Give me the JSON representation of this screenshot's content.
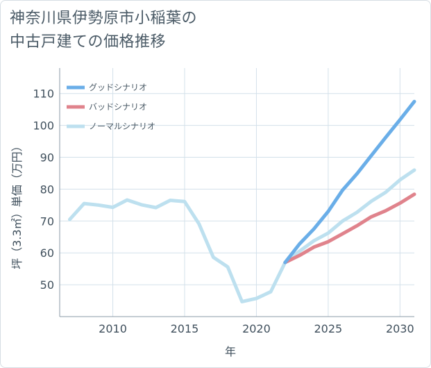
{
  "title_line1": "神奈川県伊勢原市小稲葉の",
  "title_line2": "中古戸建ての価格推移",
  "chart_data": {
    "type": "line",
    "title": "神奈川県伊勢原市小稲葉の中古戸建ての価格推移",
    "xlabel": "年",
    "ylabel": "坪（3.3㎡）単価（万円）",
    "xlim": [
      2006.3,
      2031
    ],
    "ylim": [
      40,
      118
    ],
    "xticks": [
      2010,
      2015,
      2020,
      2025,
      2030
    ],
    "yticks": [
      50,
      60,
      70,
      80,
      90,
      100,
      110
    ],
    "grid": true,
    "legend_position": "top-left",
    "series": [
      {
        "name": "グッドシナリオ",
        "color": "#6aaee8",
        "x": [
          2022,
          2023,
          2024,
          2025,
          2026,
          2027,
          2028,
          2029,
          2030,
          2031
        ],
        "y": [
          57,
          62.8,
          67.5,
          73,
          79.7,
          84.8,
          90.5,
          96.2,
          101.8,
          107.5
        ]
      },
      {
        "name": "バッドシナリオ",
        "color": "#e0838c",
        "x": [
          2022,
          2023,
          2024,
          2025,
          2026,
          2027,
          2028,
          2029,
          2030,
          2031
        ],
        "y": [
          57,
          59.2,
          61.8,
          63.5,
          66,
          68.5,
          71.3,
          73.2,
          75.6,
          78.4
        ]
      },
      {
        "name": "ノーマルシナリオ",
        "color": "#bde0ef",
        "x": [
          2007,
          2008,
          2009,
          2010,
          2011,
          2012,
          2013,
          2014,
          2015,
          2016,
          2017,
          2018,
          2019,
          2020,
          2021,
          2022,
          2023,
          2024,
          2025,
          2026,
          2027,
          2028,
          2029,
          2030,
          2031
        ],
        "y": [
          70.5,
          75.5,
          75,
          74.3,
          76.6,
          75.1,
          74.2,
          76.5,
          76.1,
          69.1,
          58.6,
          55.6,
          44.7,
          45.7,
          47.8,
          57,
          60.5,
          63.8,
          66.2,
          70,
          72.7,
          76.2,
          79,
          82.9,
          86
        ]
      }
    ]
  }
}
